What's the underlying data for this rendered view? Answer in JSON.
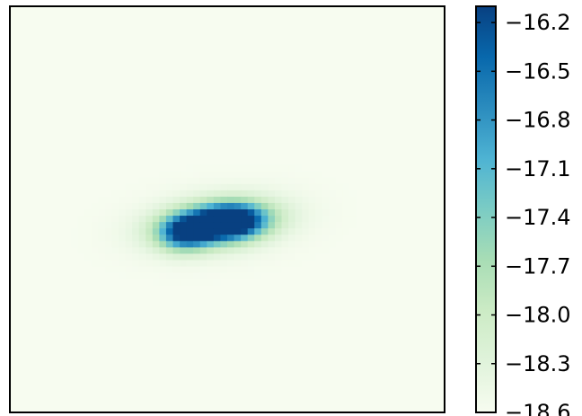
{
  "chart_data": {
    "type": "heatmap",
    "title": "",
    "xlabel": "",
    "ylabel": "",
    "colormap": "GnBu",
    "colorbar": {
      "min": -18.6,
      "max": -16.1,
      "ticks": [
        -18.6,
        -18.3,
        -18.0,
        -17.7,
        -17.4,
        -17.1,
        -16.8,
        -16.5,
        -16.2
      ],
      "tick_labels": [
        "−18.6",
        "−18.3",
        "−18.0",
        "−17.7",
        "−17.4",
        "−17.1",
        "−16.8",
        "−16.5",
        "−16.2"
      ],
      "colors": [
        "#f7fcf0",
        "#e0f3db",
        "#ccebc5",
        "#a8ddb5",
        "#7bccc4",
        "#4eb3d3",
        "#2b8cbe",
        "#0868ac",
        "#084081"
      ]
    },
    "background_value": -18.6,
    "peak_value": -16.1,
    "blobs": [
      {
        "cx": 0.475,
        "cy": 0.535,
        "sx": 0.075,
        "sy": 0.03,
        "amp": 1.0,
        "rot": -0.12
      },
      {
        "cx": 0.405,
        "cy": 0.56,
        "sx": 0.04,
        "sy": 0.028,
        "amp": 0.62,
        "rot": -0.1
      },
      {
        "cx": 0.515,
        "cy": 0.53,
        "sx": 0.045,
        "sy": 0.028,
        "amp": 0.55,
        "rot": 0.0
      },
      {
        "cx": 0.475,
        "cy": 0.535,
        "sx": 0.11,
        "sy": 0.048,
        "amp": 0.25,
        "rot": -0.12
      }
    ]
  }
}
